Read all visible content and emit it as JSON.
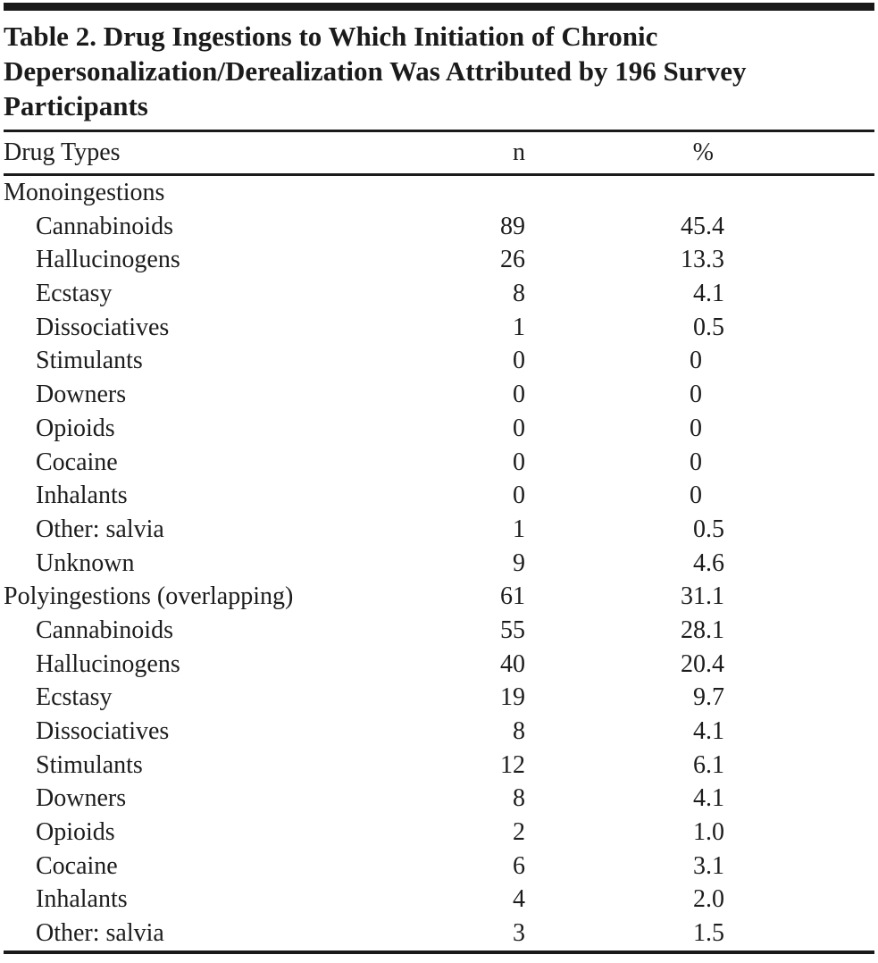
{
  "document": {
    "title_lines": [
      "Table 2. Drug Ingestions to Which Initiation of Chronic",
      "Depersonalization/Derealization Was Attributed by 196 Survey",
      "Participants"
    ]
  },
  "table": {
    "columns": {
      "drug_types": "Drug Types",
      "n": "n",
      "pct": "%"
    },
    "rows": [
      {
        "label": "Monoingestions",
        "n": "",
        "pct": "",
        "indent": false
      },
      {
        "label": "Cannabinoids",
        "n": "89",
        "pct": "45.4",
        "indent": true
      },
      {
        "label": "Hallucinogens",
        "n": "26",
        "pct": "13.3",
        "indent": true
      },
      {
        "label": "Ecstasy",
        "n": "8",
        "pct": "4.1",
        "indent": true
      },
      {
        "label": "Dissociatives",
        "n": "1",
        "pct": "0.5",
        "indent": true
      },
      {
        "label": "Stimulants",
        "n": "0",
        "pct": "0",
        "indent": true
      },
      {
        "label": "Downers",
        "n": "0",
        "pct": "0",
        "indent": true
      },
      {
        "label": "Opioids",
        "n": "0",
        "pct": "0",
        "indent": true
      },
      {
        "label": "Cocaine",
        "n": "0",
        "pct": "0",
        "indent": true
      },
      {
        "label": "Inhalants",
        "n": "0",
        "pct": "0",
        "indent": true
      },
      {
        "label": "Other: salvia",
        "n": "1",
        "pct": "0.5",
        "indent": true
      },
      {
        "label": "Unknown",
        "n": "9",
        "pct": "4.6",
        "indent": true
      },
      {
        "label": "Polyingestions (overlapping)",
        "n": "61",
        "pct": "31.1",
        "indent": false
      },
      {
        "label": "Cannabinoids",
        "n": "55",
        "pct": "28.1",
        "indent": true
      },
      {
        "label": "Hallucinogens",
        "n": "40",
        "pct": "20.4",
        "indent": true
      },
      {
        "label": "Ecstasy",
        "n": "19",
        "pct": "9.7",
        "indent": true
      },
      {
        "label": "Dissociatives",
        "n": "8",
        "pct": "4.1",
        "indent": true
      },
      {
        "label": "Stimulants",
        "n": "12",
        "pct": "6.1",
        "indent": true
      },
      {
        "label": "Downers",
        "n": "8",
        "pct": "4.1",
        "indent": true
      },
      {
        "label": "Opioids",
        "n": "2",
        "pct": "1.0",
        "indent": true
      },
      {
        "label": "Cocaine",
        "n": "6",
        "pct": "3.1",
        "indent": true
      },
      {
        "label": "Inhalants",
        "n": "4",
        "pct": "2.0",
        "indent": true
      },
      {
        "label": "Other: salvia",
        "n": "3",
        "pct": "1.5",
        "indent": true
      }
    ]
  }
}
